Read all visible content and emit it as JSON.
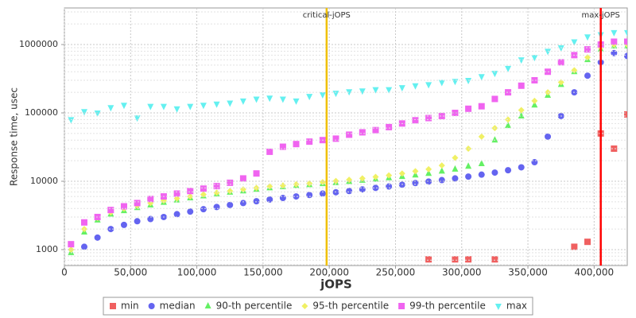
{
  "chart_data": {
    "type": "scatter",
    "x_label": "jOPS",
    "y_label": "Response time, usec",
    "log_y": true,
    "grid": true,
    "legend": "bottom",
    "xlim": [
      0,
      425000
    ],
    "ylim": [
      585,
      3430000
    ],
    "xticks": [
      0,
      {
        "value": 50000,
        "label": "50,000"
      },
      {
        "value": 100000,
        "label": "100,000"
      },
      {
        "value": 150000,
        "label": "150,000"
      },
      {
        "value": 200000,
        "label": "200,000"
      },
      {
        "value": 250000,
        "label": "250,000"
      },
      {
        "value": 300000,
        "label": "300,000"
      },
      {
        "value": 350000,
        "label": "350,000"
      },
      {
        "value": 400000,
        "label": "400,000"
      }
    ],
    "yticks": [
      1000,
      10000,
      100000,
      1000000
    ],
    "x": [
      5000,
      15000,
      25000,
      35000,
      45000,
      55000,
      65000,
      75000,
      85000,
      95000,
      105000,
      115000,
      125000,
      135000,
      145000,
      155000,
      165000,
      175000,
      185000,
      195000,
      205000,
      215000,
      225000,
      235000,
      245000,
      255000,
      265000,
      275000,
      285000,
      295000,
      305000,
      315000,
      325000,
      335000,
      345000,
      355000,
      365000,
      375000,
      385000,
      395000,
      405000,
      415000,
      425000
    ],
    "annotations": [
      {
        "label": "critical-jOPS",
        "x": 198000,
        "color": "#f0c000"
      },
      {
        "label": "max-jOPS",
        "x": 405000,
        "color": "#ff0000"
      }
    ],
    "series": [
      {
        "name": "min",
        "color": "#f06060",
        "marker": "square",
        "values": [
          null,
          null,
          null,
          null,
          null,
          null,
          null,
          null,
          null,
          null,
          null,
          null,
          null,
          null,
          null,
          null,
          null,
          null,
          null,
          null,
          null,
          null,
          null,
          null,
          null,
          null,
          null,
          720,
          null,
          720,
          720,
          null,
          720,
          null,
          null,
          null,
          null,
          null,
          1100,
          1300,
          50000,
          30000,
          95000
        ]
      },
      {
        "name": "median",
        "color": "#6464f0",
        "marker": "circle",
        "values": [
          null,
          1100,
          1500,
          2000,
          2300,
          2600,
          2800,
          3000,
          3300,
          3600,
          3900,
          4200,
          4500,
          4800,
          5100,
          5400,
          5700,
          6000,
          6300,
          6600,
          6900,
          7200,
          7600,
          8000,
          8400,
          8900,
          9400,
          9900,
          10400,
          11000,
          11700,
          12500,
          13400,
          14500,
          16000,
          19000,
          45000,
          90000,
          200000,
          350000,
          550000,
          750000,
          680000
        ]
      },
      {
        "name": "90-th percentile",
        "color": "#64f064",
        "marker": "triangle-up",
        "values": [
          900,
          1800,
          2700,
          3300,
          3700,
          4100,
          4500,
          4900,
          5300,
          5700,
          6100,
          6500,
          6900,
          7200,
          7600,
          8000,
          8300,
          8600,
          8900,
          9200,
          9500,
          9900,
          10300,
          10700,
          11200,
          11700,
          12300,
          13000,
          14000,
          15000,
          16500,
          18000,
          40000,
          65000,
          90000,
          130000,
          180000,
          260000,
          400000,
          600000,
          850000,
          950000,
          950000
        ]
      },
      {
        "name": "95-th percentile",
        "color": "#f0f064",
        "marker": "diamond",
        "values": [
          1000,
          2000,
          2900,
          3500,
          4000,
          4400,
          4800,
          5200,
          5600,
          6000,
          6400,
          6800,
          7200,
          7600,
          8000,
          8400,
          8700,
          9000,
          9300,
          9700,
          10100,
          10500,
          11000,
          11600,
          12200,
          13000,
          14000,
          15000,
          17000,
          22000,
          30000,
          45000,
          60000,
          80000,
          110000,
          150000,
          200000,
          280000,
          420000,
          650000,
          900000,
          1000000,
          1000000
        ]
      },
      {
        "name": "99-th percentile",
        "color": "#f064f0",
        "marker": "square",
        "values": [
          1200,
          2500,
          3000,
          3800,
          4300,
          4800,
          5500,
          6000,
          6600,
          7200,
          7800,
          8500,
          9500,
          11000,
          13000,
          27000,
          32000,
          35000,
          38000,
          40000,
          42000,
          48000,
          52000,
          56000,
          62000,
          70000,
          78000,
          84000,
          90000,
          100000,
          115000,
          125000,
          160000,
          200000,
          250000,
          300000,
          400000,
          550000,
          700000,
          850000,
          1000000,
          1100000,
          1100000
        ]
      },
      {
        "name": "max",
        "color": "#64f0f0",
        "marker": "triangle-down",
        "values": [
          80000,
          105000,
          100000,
          120000,
          130000,
          85000,
          125000,
          125000,
          115000,
          125000,
          130000,
          135000,
          140000,
          150000,
          160000,
          165000,
          160000,
          150000,
          175000,
          185000,
          195000,
          205000,
          210000,
          220000,
          220000,
          235000,
          250000,
          260000,
          280000,
          290000,
          300000,
          340000,
          380000,
          450000,
          600000,
          650000,
          800000,
          900000,
          1100000,
          1300000,
          1400000,
          1500000,
          1500000
        ]
      }
    ]
  }
}
